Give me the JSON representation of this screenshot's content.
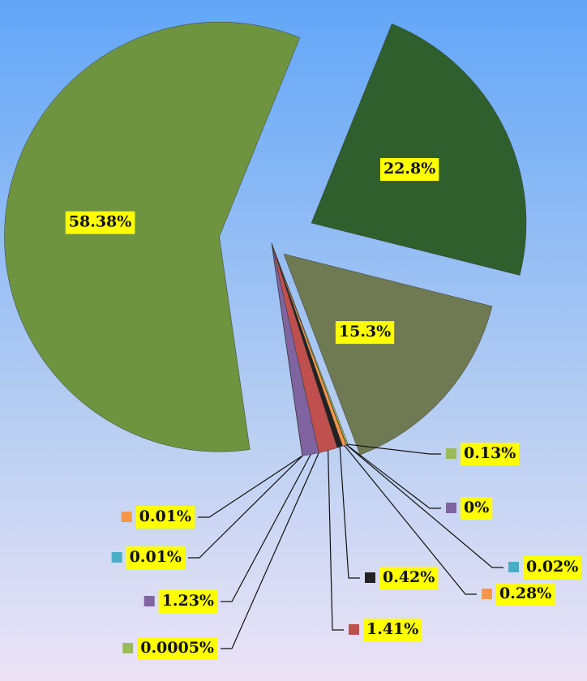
{
  "chart_data": {
    "type": "pie",
    "values": [
      22.8,
      15.3,
      0.13,
      0,
      0.02,
      0.28,
      0.42,
      1.41,
      0.0005,
      1.23,
      0.01,
      0.01,
      58.38
    ],
    "value_labels": [
      "22.8%",
      "15.3%",
      "0.13%",
      "0%",
      "0.02%",
      "0.28%",
      "0.42%",
      "1.41%",
      "0.0005%",
      "1.23%",
      "0.01%",
      "0.01%",
      "58.38%"
    ],
    "colors": [
      "#2f5f2c",
      "#6f7a52",
      "#9bbb59",
      "#8064a2",
      "#4bacc6",
      "#f79646",
      "#222222",
      "#c0504d",
      "#9bbb59",
      "#8064a2",
      "#4bacc6",
      "#f79646",
      "#6e9440"
    ]
  }
}
